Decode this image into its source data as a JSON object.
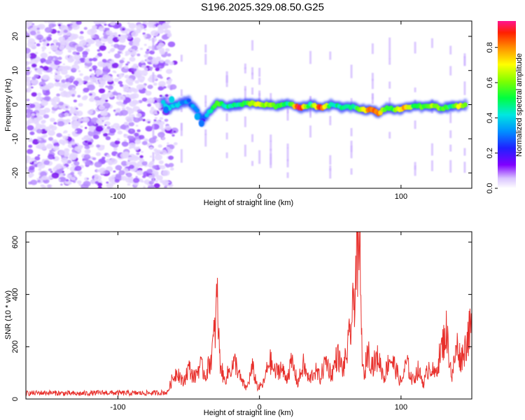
{
  "figure": {
    "title": "S196.2025.329.08.50.G25"
  },
  "chart_data": [
    {
      "type": "heatmap",
      "xlabel": "Height of straight line (km)",
      "ylabel": "Frequency (Hz)",
      "xlim": [
        -165,
        150
      ],
      "ylim": [
        -24.5,
        24.5
      ],
      "xticks": [
        -100,
        0,
        100
      ],
      "yticks": [
        -20,
        -10,
        0,
        10,
        20
      ],
      "colorbar": {
        "label": "Normalized spectral amplitude",
        "range": [
          0,
          0.95
        ],
        "ticks": [
          0.0,
          0.2,
          0.4,
          0.6,
          0.8
        ],
        "tick_labels": [
          "0.0",
          "0.2",
          "0.4",
          "0.6",
          "0.8"
        ]
      },
      "noise_region_x": [
        -165,
        -65
      ],
      "ridge": [
        {
          "x": -68,
          "f": 0.5,
          "a": 0.45
        },
        {
          "x": -65,
          "f": -1.0,
          "a": 0.4
        },
        {
          "x": -58,
          "f": 0.0,
          "a": 0.35
        },
        {
          "x": -50,
          "f": 1.0,
          "a": 0.3
        },
        {
          "x": -44,
          "f": -2.0,
          "a": 0.35
        },
        {
          "x": -40,
          "f": -4.5,
          "a": 0.25
        },
        {
          "x": -30,
          "f": 0.5,
          "a": 0.6
        },
        {
          "x": -22,
          "f": -0.5,
          "a": 0.45
        },
        {
          "x": -15,
          "f": 0.0,
          "a": 0.5
        },
        {
          "x": -8,
          "f": 0.5,
          "a": 0.55
        },
        {
          "x": -1,
          "f": 0.0,
          "a": 0.75
        },
        {
          "x": 5,
          "f": 0.0,
          "a": 0.6
        },
        {
          "x": 13,
          "f": -0.5,
          "a": 0.55
        },
        {
          "x": 20,
          "f": 0.5,
          "a": 0.45
        },
        {
          "x": 28,
          "f": -1.0,
          "a": 0.9
        },
        {
          "x": 36,
          "f": 0.0,
          "a": 0.45
        },
        {
          "x": 43,
          "f": -1.0,
          "a": 0.9
        },
        {
          "x": 52,
          "f": 0.0,
          "a": 0.4
        },
        {
          "x": 58,
          "f": -1.0,
          "a": 0.5
        },
        {
          "x": 66,
          "f": -0.5,
          "a": 0.45
        },
        {
          "x": 72,
          "f": -1.5,
          "a": 0.6
        },
        {
          "x": 78,
          "f": -1.5,
          "a": 0.85
        },
        {
          "x": 84,
          "f": -2.5,
          "a": 0.8
        },
        {
          "x": 90,
          "f": -1.0,
          "a": 0.5
        },
        {
          "x": 96,
          "f": -1.5,
          "a": 0.6
        },
        {
          "x": 102,
          "f": -1.0,
          "a": 0.8
        },
        {
          "x": 110,
          "f": -0.5,
          "a": 0.5
        },
        {
          "x": 116,
          "f": -0.5,
          "a": 0.55
        },
        {
          "x": 122,
          "f": -0.5,
          "a": 0.6
        },
        {
          "x": 130,
          "f": -1.0,
          "a": 0.55
        },
        {
          "x": 136,
          "f": -0.5,
          "a": 0.45
        },
        {
          "x": 142,
          "f": -0.5,
          "a": 0.75
        },
        {
          "x": 147,
          "f": 0.0,
          "a": 0.45
        }
      ],
      "vertical_streaks_x": [
        -75,
        -55,
        -38,
        -23,
        -10,
        -5,
        0,
        8,
        20,
        36,
        50,
        65,
        80,
        92,
        110,
        122,
        135,
        145
      ]
    },
    {
      "type": "line",
      "xlabel": "Height of straight line (km)",
      "ylabel": "SNR (10 * v/v)",
      "xlim": [
        -165,
        150
      ],
      "ylim": [
        0,
        640
      ],
      "xticks": [
        -100,
        0,
        100
      ],
      "yticks": [
        0,
        200,
        400,
        600
      ],
      "color": "#e8302c",
      "series": [
        {
          "x": [
            -165,
            -150,
            -130,
            -110,
            -90,
            -75,
            -65,
            -62,
            -58,
            -54,
            -50,
            -46,
            -42,
            -38,
            -34,
            -31,
            -30,
            -28,
            -25,
            -21,
            -17,
            -13,
            -9,
            -5,
            -1,
            3,
            7,
            11,
            15,
            19,
            23,
            27,
            31,
            35,
            39,
            43,
            47,
            51,
            55,
            59,
            62,
            64,
            66,
            68,
            69,
            70,
            71,
            72,
            74,
            76,
            80,
            84,
            88,
            92,
            96,
            100,
            104,
            108,
            112,
            116,
            120,
            124,
            128,
            132,
            136,
            138,
            140,
            142,
            145,
            147,
            149,
            150
          ],
          "y": [
            22,
            24,
            20,
            24,
            22,
            23,
            25,
            70,
            110,
            60,
            120,
            80,
            130,
            90,
            160,
            280,
            400,
            150,
            70,
            110,
            140,
            70,
            40,
            120,
            40,
            60,
            150,
            100,
            120,
            80,
            140,
            60,
            130,
            70,
            110,
            80,
            150,
            90,
            170,
            110,
            180,
            250,
            330,
            480,
            620,
            450,
            600,
            240,
            60,
            190,
            130,
            160,
            80,
            160,
            120,
            60,
            140,
            70,
            110,
            60,
            130,
            90,
            180,
            260,
            80,
            160,
            210,
            150,
            190,
            240,
            260,
            290
          ]
        }
      ]
    }
  ]
}
